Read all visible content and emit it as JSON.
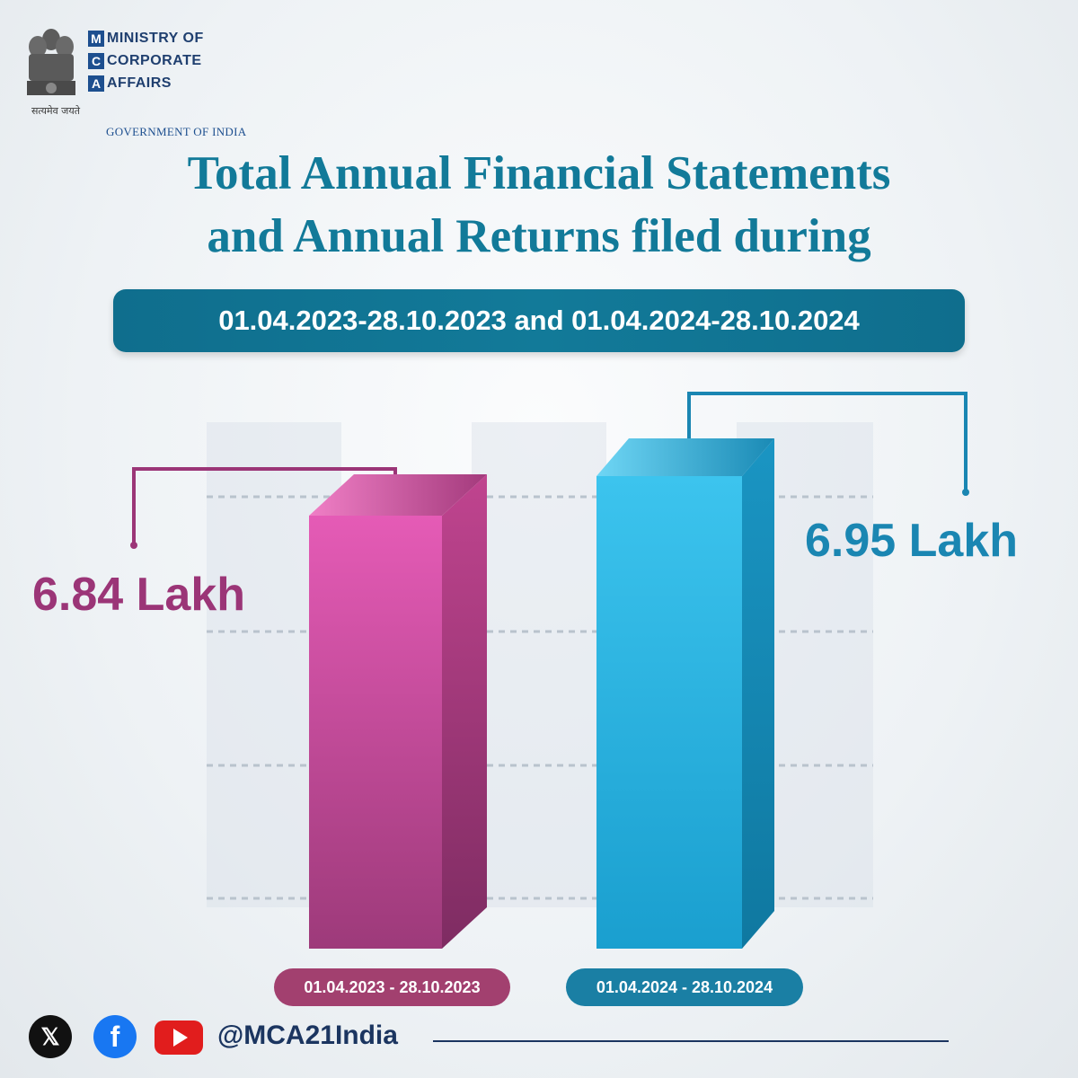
{
  "header": {
    "emblem_motto": "सत्यमेव जयते",
    "letters": [
      "M",
      "C",
      "A"
    ],
    "words": [
      "MINISTRY OF",
      "CORPORATE",
      "AFFAIRS"
    ],
    "government": "GOVERNMENT OF INDIA"
  },
  "title_line1": "Total Annual Financial Statements",
  "title_line2": "and Annual Returns filed during",
  "date_banner": "01.04.2023-28.10.2023 and 01.04.2024-28.10.2024",
  "chart_data": {
    "type": "bar",
    "title": "Total Annual Financial Statements and Annual Returns filed during",
    "categories": [
      "01.04.2023 - 28.10.2023",
      "01.04.2024 - 28.10.2024"
    ],
    "values": [
      6.84,
      6.95
    ],
    "value_labels": [
      "6.84 Lakh",
      "6.95 Lakh"
    ],
    "unit": "Lakh",
    "colors": [
      "#c14a93",
      "#2bb3e2"
    ],
    "grid": true
  },
  "footer": {
    "handle": "@MCA21India",
    "icons": [
      "x-icon",
      "facebook-icon",
      "youtube-icon"
    ]
  }
}
